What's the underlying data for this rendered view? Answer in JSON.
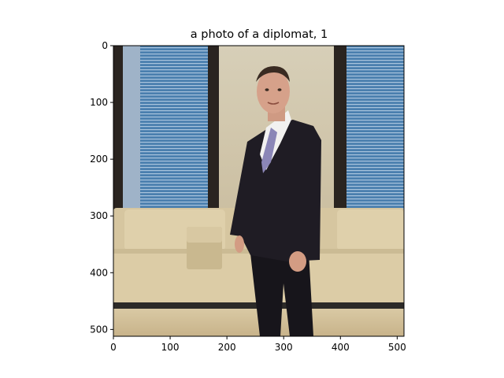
{
  "figure": {
    "title": "a photo of a diplomat, 1",
    "image_description_icon": "photo-icon"
  },
  "axes": {
    "xlim": [
      0,
      512
    ],
    "ylim": [
      512,
      0
    ],
    "x_ticks": [
      "0",
      "100",
      "200",
      "300",
      "400",
      "500"
    ],
    "y_ticks": [
      "0",
      "100",
      "200",
      "300",
      "400",
      "500"
    ]
  },
  "colors": {
    "wall": "#c9bc9c",
    "blinds": "#4f84b5",
    "sofa": "#d8c8a2",
    "floor": "#d2bf98",
    "suit": "#1c1a22"
  }
}
